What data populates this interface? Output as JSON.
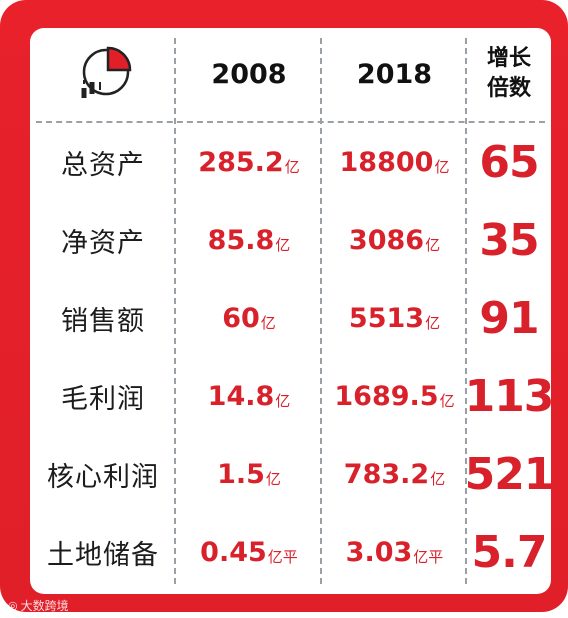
{
  "header": {
    "col_2008": "2008",
    "col_2018": "2018",
    "growth_label_line1": "增长",
    "growth_label_line2": "倍数",
    "chart_icon": "pie-bar-chart-icon"
  },
  "rows": [
    {
      "label": "总资产",
      "v2008": "285.2",
      "u2008": "亿",
      "v2018": "18800",
      "u2018": "亿",
      "multiple": "65"
    },
    {
      "label": "净资产",
      "v2008": "85.8",
      "u2008": "亿",
      "v2018": "3086",
      "u2018": "亿",
      "multiple": "35"
    },
    {
      "label": "销售额",
      "v2008": "60",
      "u2008": "亿",
      "v2018": "5513",
      "u2018": "亿",
      "multiple": "91"
    },
    {
      "label": "毛利润",
      "v2008": "14.8",
      "u2008": "亿",
      "v2018": "1689.5",
      "u2018": "亿",
      "multiple": "113"
    },
    {
      "label": "核心利润",
      "v2008": "1.5",
      "u2008": "亿",
      "v2018": "783.2",
      "u2018": "亿",
      "multiple": "521"
    },
    {
      "label": "土地储备",
      "v2008": "0.45",
      "u2008": "亿平",
      "v2018": "3.03",
      "u2018": "亿平",
      "multiple": "5.7"
    }
  ],
  "watermark": "大数跨境",
  "colors": {
    "accent": "#e01f29",
    "value": "#d8212b",
    "text": "#111111"
  }
}
